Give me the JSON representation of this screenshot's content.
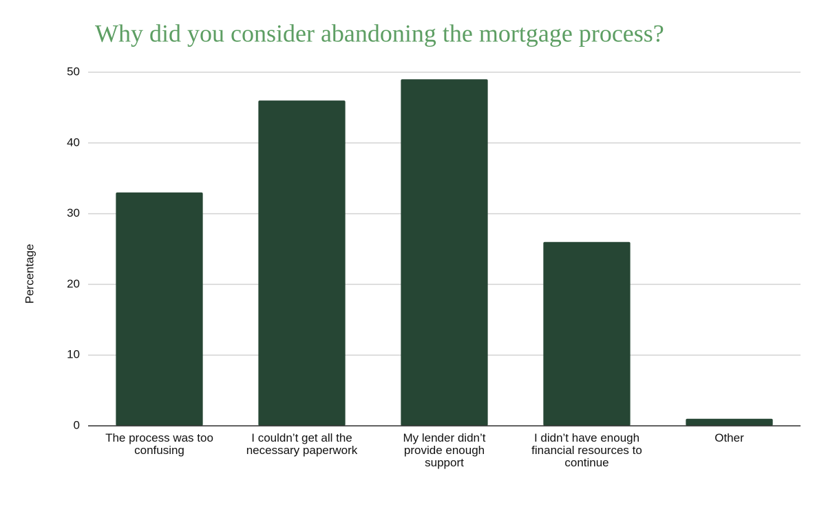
{
  "chart_data": {
    "type": "bar",
    "title": "Why did you consider abandoning the mortgage process?",
    "y_label": "Percentage",
    "categories": [
      "The process was too confusing",
      "I couldn’t get all the necessary paperwork",
      "My lender didn’t provide enough support",
      "I didn’t have enough financial resources to continue",
      "Other"
    ],
    "values": [
      33,
      46,
      49,
      26,
      1
    ],
    "color": "#264634",
    "ylim": [
      0,
      50
    ],
    "yticks": [
      0,
      10,
      20,
      30,
      40,
      50
    ],
    "grid": true
  }
}
